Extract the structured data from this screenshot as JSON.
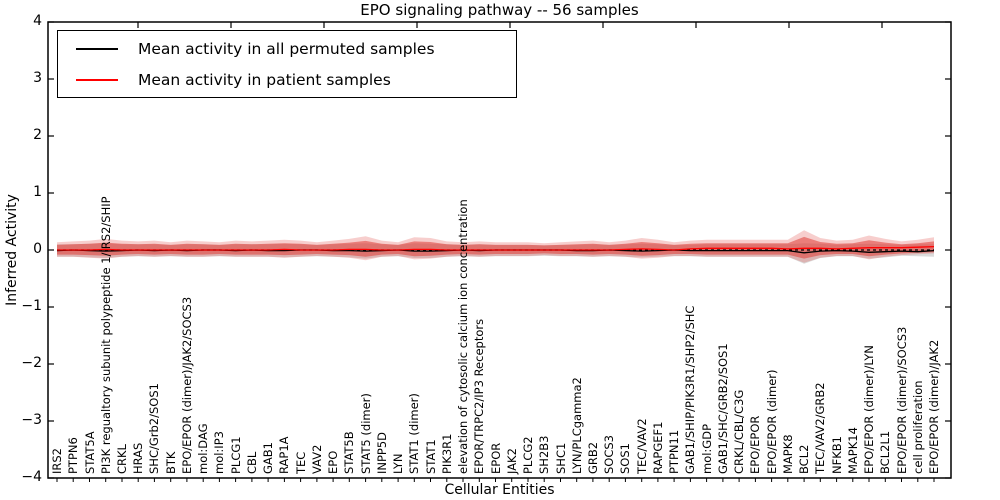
{
  "chart_data": {
    "type": "line",
    "title": "EPO signaling pathway -- 56 samples",
    "xlabel": "Cellular Entities",
    "ylabel": "Inferred Activity",
    "ylim": [
      -4,
      4
    ],
    "grid": false,
    "legend_position": "upper left",
    "yticks": [
      {
        "value": 4,
        "label": "4"
      },
      {
        "value": 3,
        "label": "3"
      },
      {
        "value": 2,
        "label": "2"
      },
      {
        "value": 1,
        "label": "1"
      },
      {
        "value": 0,
        "label": "0"
      },
      {
        "value": -1,
        "label": "−1"
      },
      {
        "value": -2,
        "label": "−2"
      },
      {
        "value": -3,
        "label": "−3"
      },
      {
        "value": -4,
        "label": "−4"
      }
    ],
    "legend": [
      {
        "label": "Mean activity in all permuted samples",
        "color": "#000000"
      },
      {
        "label": "Mean activity in patient samples",
        "color": "#ff0000"
      }
    ],
    "band_colors": {
      "permuted_range": "#aaaaaa",
      "patient_std": "#e03c36"
    },
    "zero_line": {
      "value": 0,
      "style": "dashed",
      "color": "#000000"
    },
    "entities": [
      "IRS2",
      "PTPN6",
      "STAT5A",
      "PI3K regualtory subunit polypeptide 1/IRS2/SHIP",
      "CRKL",
      "HRAS",
      "SHC/Grb2/SOS1",
      "BTK",
      "EPO/EPOR (dimer)/JAK2/SOCS3",
      "mol:DAG",
      "mol:IP3",
      "PLCG1",
      "CBL",
      "GAB1",
      "RAP1A",
      "TEC",
      "VAV2",
      "EPO",
      "STAT5B",
      "STAT5 (dimer)",
      "INPP5D",
      "LYN",
      "STAT1 (dimer)",
      "STAT1",
      "PIK3R1",
      "elevation of cytosolic calcium ion concentration",
      "EPOR/TRPC2/IP3 Receptors",
      "EPOR",
      "JAK2",
      "PLCG2",
      "SH2B3",
      "SHC1",
      "LYN/PLCgamma2",
      "GRB2",
      "SOCS3",
      "SOS1",
      "TEC/VAV2",
      "RAPGEF1",
      "PTPN11",
      "GAB1/SHIP/PIK3R1/SHP2/SHC",
      "mol:GDP",
      "GAB1/SHC/GRB2/SOS1",
      "CRKL/CBL/C3G",
      "EPO/EPOR",
      "EPO/EPOR (dimer)",
      "MAPK8",
      "BCL2",
      "TEC/VAV2/GRB2",
      "NFKB1",
      "MAPK14",
      "EPO/EPOR (dimer)/LYN",
      "BCL2L1",
      "EPO/EPOR (dimer)/SOCS3",
      "cell proliferation",
      "EPO/EPOR (dimer)/JAK2"
    ],
    "series": [
      {
        "name": "Mean activity in all permuted samples",
        "values": [
          -0.01,
          0,
          -0.01,
          -0.02,
          -0.01,
          0,
          -0.01,
          0,
          -0.01,
          0,
          0,
          -0.01,
          0,
          -0.01,
          -0.01,
          0,
          0,
          -0.01,
          -0.01,
          -0.02,
          -0.01,
          0,
          -0.02,
          -0.02,
          -0.01,
          0,
          -0.01,
          0,
          0,
          0,
          0,
          0,
          -0.01,
          -0.01,
          0,
          -0.01,
          -0.02,
          -0.01,
          0,
          -0.01,
          -0.01,
          -0.01,
          -0.01,
          -0.01,
          -0.01,
          -0.01,
          -0.05,
          -0.02,
          -0.01,
          -0.02,
          -0.04,
          -0.03,
          -0.02,
          -0.03,
          -0.01
        ]
      },
      {
        "name": "Mean activity in patient samples",
        "values": [
          0,
          0,
          0,
          0.01,
          0,
          0,
          0,
          0,
          0,
          0,
          0,
          0,
          0,
          0,
          0.01,
          0,
          0,
          0,
          0.01,
          0.01,
          0,
          0,
          0.01,
          0.01,
          0,
          0,
          0,
          0,
          0,
          0,
          0,
          0,
          0,
          0,
          0,
          0.01,
          0.02,
          0.01,
          0,
          0.02,
          0.03,
          0.03,
          0.03,
          0.03,
          0.03,
          0.02,
          0.03,
          0.03,
          0.02,
          0.03,
          0.04,
          0.04,
          0.04,
          0.05,
          0.06
        ]
      }
    ],
    "bands": {
      "patient_std_upper": [
        0.09,
        0.1,
        0.11,
        0.13,
        0.11,
        0.1,
        0.11,
        0.09,
        0.11,
        0.1,
        0.09,
        0.11,
        0.1,
        0.11,
        0.12,
        0.11,
        0.09,
        0.11,
        0.13,
        0.16,
        0.11,
        0.09,
        0.15,
        0.14,
        0.1,
        0.09,
        0.1,
        0.09,
        0.09,
        0.09,
        0.08,
        0.09,
        0.1,
        0.11,
        0.09,
        0.11,
        0.14,
        0.12,
        0.09,
        0.11,
        0.12,
        0.12,
        0.12,
        0.12,
        0.12,
        0.12,
        0.23,
        0.14,
        0.11,
        0.12,
        0.17,
        0.13,
        0.1,
        0.12,
        0.15
      ],
      "patient_std_lower": [
        -0.08,
        -0.08,
        -0.09,
        -0.1,
        -0.08,
        -0.07,
        -0.08,
        -0.07,
        -0.08,
        -0.08,
        -0.07,
        -0.08,
        -0.08,
        -0.08,
        -0.09,
        -0.08,
        -0.07,
        -0.08,
        -0.09,
        -0.12,
        -0.08,
        -0.07,
        -0.11,
        -0.1,
        -0.08,
        -0.07,
        -0.08,
        -0.07,
        -0.07,
        -0.07,
        -0.06,
        -0.07,
        -0.07,
        -0.08,
        -0.07,
        -0.08,
        -0.1,
        -0.09,
        -0.07,
        -0.07,
        -0.08,
        -0.08,
        -0.08,
        -0.08,
        -0.08,
        -0.08,
        -0.15,
        -0.09,
        -0.07,
        -0.07,
        -0.11,
        -0.08,
        -0.06,
        -0.05,
        -0.04
      ],
      "permuted_range_upper": [
        0.1,
        0.1,
        0.11,
        0.12,
        0.1,
        0.1,
        0.1,
        0.09,
        0.1,
        0.1,
        0.09,
        0.1,
        0.1,
        0.1,
        0.11,
        0.1,
        0.09,
        0.1,
        0.11,
        0.12,
        0.1,
        0.09,
        0.12,
        0.11,
        0.1,
        0.09,
        0.1,
        0.09,
        0.09,
        0.09,
        0.08,
        0.09,
        0.09,
        0.1,
        0.09,
        0.1,
        0.11,
        0.1,
        0.09,
        0.09,
        0.1,
        0.1,
        0.1,
        0.1,
        0.1,
        0.1,
        0.12,
        0.11,
        0.09,
        0.1,
        0.11,
        0.1,
        0.09,
        0.1,
        0.1
      ],
      "permuted_range_lower": [
        -0.12,
        -0.12,
        -0.13,
        -0.14,
        -0.12,
        -0.11,
        -0.12,
        -0.11,
        -0.12,
        -0.12,
        -0.11,
        -0.12,
        -0.12,
        -0.12,
        -0.13,
        -0.12,
        -0.11,
        -0.12,
        -0.13,
        -0.15,
        -0.12,
        -0.11,
        -0.14,
        -0.14,
        -0.12,
        -0.11,
        -0.12,
        -0.11,
        -0.11,
        -0.11,
        -0.1,
        -0.11,
        -0.11,
        -0.12,
        -0.11,
        -0.12,
        -0.13,
        -0.12,
        -0.11,
        -0.11,
        -0.12,
        -0.12,
        -0.12,
        -0.12,
        -0.12,
        -0.12,
        -0.24,
        -0.14,
        -0.11,
        -0.11,
        -0.15,
        -0.13,
        -0.1,
        -0.11,
        -0.12
      ]
    }
  }
}
